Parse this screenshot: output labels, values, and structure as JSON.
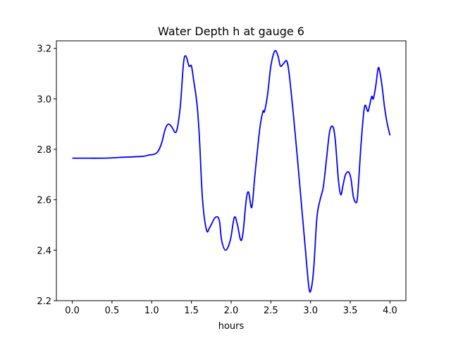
{
  "chart_data": {
    "type": "line",
    "title": "Water Depth h at gauge 6",
    "xlabel": "hours",
    "ylabel": "",
    "xlim": [
      -0.2,
      4.2
    ],
    "ylim": [
      2.2,
      3.23
    ],
    "xticks": [
      0.0,
      0.5,
      1.0,
      1.5,
      2.0,
      2.5,
      3.0,
      3.5,
      4.0
    ],
    "xtick_labels": [
      "0.0",
      "0.5",
      "1.0",
      "1.5",
      "2.0",
      "2.5",
      "3.0",
      "3.5",
      "4.0"
    ],
    "yticks": [
      2.2,
      2.4,
      2.6,
      2.8,
      3.0,
      3.2
    ],
    "ytick_labels": [
      "2.2",
      "2.4",
      "2.6",
      "2.8",
      "3.0",
      "3.2"
    ],
    "grid": false,
    "color": "#0000ff",
    "series": [
      {
        "x": [
          0.0,
          0.4,
          0.6,
          0.88,
          0.96,
          1.06,
          1.12,
          1.17,
          1.21,
          1.25,
          1.31,
          1.36,
          1.4,
          1.43,
          1.47,
          1.5,
          1.53,
          1.57,
          1.6,
          1.64,
          1.69,
          1.73,
          1.8,
          1.85,
          1.88,
          1.93,
          1.99,
          2.04,
          2.08,
          2.12,
          2.15,
          2.19,
          2.22,
          2.26,
          2.3,
          2.36,
          2.4,
          2.42,
          2.46,
          2.5,
          2.55,
          2.59,
          2.62,
          2.66,
          2.7,
          2.73,
          2.78,
          2.83,
          2.88,
          2.93,
          2.98,
          3.01,
          3.04,
          3.08,
          3.12,
          3.16,
          3.2,
          3.24,
          3.28,
          3.31,
          3.35,
          3.38,
          3.41,
          3.44,
          3.48,
          3.51,
          3.54,
          3.58,
          3.6,
          3.64,
          3.68,
          3.72,
          3.74,
          3.77,
          3.79,
          3.82,
          3.85,
          3.87,
          3.9,
          3.93,
          3.96,
          4.0
        ],
        "y": [
          2.765,
          2.765,
          2.768,
          2.772,
          2.777,
          2.785,
          2.82,
          2.88,
          2.9,
          2.89,
          2.87,
          2.97,
          3.14,
          3.17,
          3.13,
          3.13,
          3.07,
          2.98,
          2.85,
          2.6,
          2.48,
          2.49,
          2.53,
          2.52,
          2.44,
          2.4,
          2.44,
          2.53,
          2.5,
          2.44,
          2.47,
          2.6,
          2.63,
          2.57,
          2.7,
          2.88,
          2.95,
          2.95,
          3.02,
          3.13,
          3.19,
          3.17,
          3.13,
          3.14,
          3.15,
          3.1,
          2.95,
          2.78,
          2.6,
          2.42,
          2.25,
          2.25,
          2.33,
          2.53,
          2.6,
          2.65,
          2.76,
          2.87,
          2.89,
          2.84,
          2.68,
          2.62,
          2.66,
          2.7,
          2.71,
          2.68,
          2.61,
          2.59,
          2.65,
          2.84,
          2.97,
          2.95,
          2.97,
          3.01,
          3.0,
          3.05,
          3.12,
          3.11,
          3.05,
          2.97,
          2.91,
          2.855
        ]
      }
    ]
  }
}
